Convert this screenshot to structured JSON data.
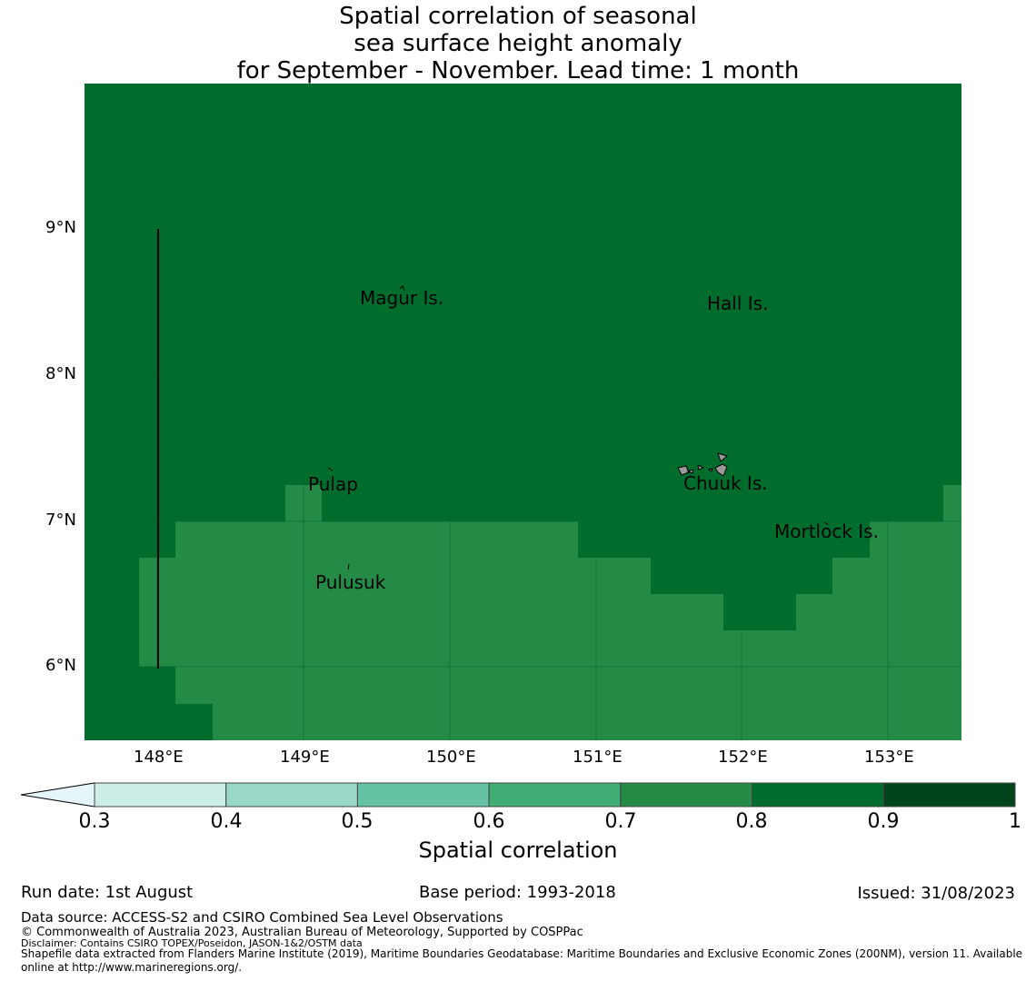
{
  "title_lines": [
    "Spatial correlation of seasonal",
    "sea surface height anomaly",
    "for September - November. Lead time: 1 month"
  ],
  "axes": {
    "lon_ticks": [
      "148°E",
      "149°E",
      "150°E",
      "151°E",
      "152°E",
      "153°E"
    ],
    "lat_ticks": [
      "9°N",
      "8°N",
      "7°N",
      "6°N"
    ]
  },
  "places": [
    {
      "name": "Magur Is."
    },
    {
      "name": "Hall Is."
    },
    {
      "name": "Pulap"
    },
    {
      "name": "Chuuk Is."
    },
    {
      "name": "Mortlock Is."
    },
    {
      "name": "Pulusuk"
    }
  ],
  "colorbar": {
    "label": "Spatial correlation",
    "ticks": [
      "0.3",
      "0.4",
      "0.5",
      "0.6",
      "0.7",
      "0.8",
      "0.9",
      "1"
    ],
    "colors": [
      "#e5f5f9",
      "#ccece6",
      "#99d8c9",
      "#66c2a4",
      "#41ae76",
      "#238b45",
      "#006d2c",
      "#00441b"
    ]
  },
  "map_colors": {
    "high": "#006d2c",
    "mid": "#238b45"
  },
  "footer": {
    "run_date": "Run date: 1st August",
    "base_period": "Base period: 1993-2018",
    "issued": "Issued: 31/08/2023",
    "data_source": "Data source: ACCESS-S2 and CSIRO Combined Sea Level Observations",
    "copyright": "© Commonwealth of Australia 2023, Australian Bureau of Meteorology, Supported by COSPPac",
    "disclaimer": "Disclaimer: Contains CSIRO TOPEX/Poseidon, JASON-1&2/OSTM data",
    "shapefile_1": "Shapefile data extracted from Flanders Marine Institute (2019), Maritime Boundaries Geodatabase: Maritime Boundaries and Exclusive Economic Zones (200NM), version 11. Available",
    "shapefile_2": "online at http://www.marineregions.org/."
  }
}
